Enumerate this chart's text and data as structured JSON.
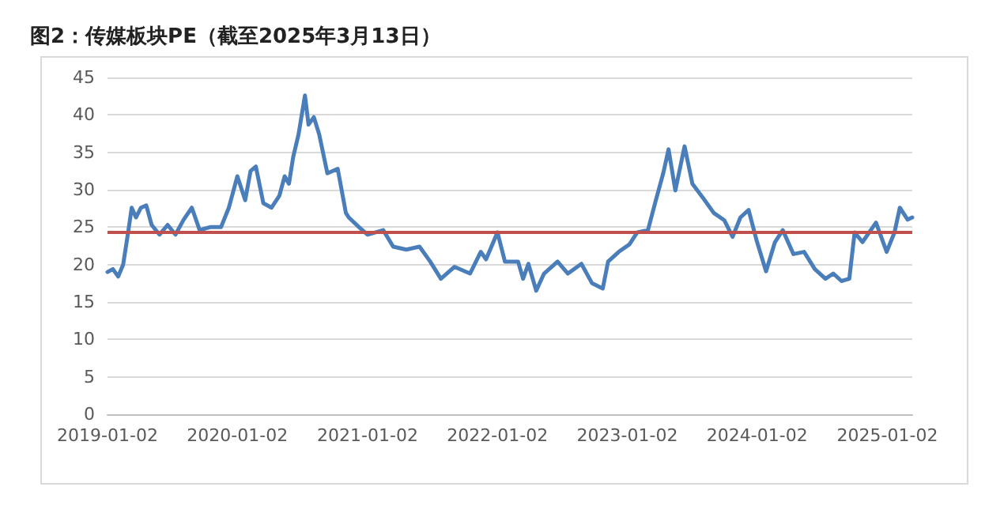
{
  "chart_data": {
    "type": "line",
    "title": "图2：传媒板块PE（截至2025年3月13日）",
    "x": [
      "2019-01-02",
      "2019-01-17",
      "2019-02-01",
      "2019-02-15",
      "2019-03-01",
      "2019-03-11",
      "2019-03-23",
      "2019-04-06",
      "2019-04-21",
      "2019-05-06",
      "2019-05-28",
      "2019-06-20",
      "2019-07-12",
      "2019-08-04",
      "2019-08-27",
      "2019-09-18",
      "2019-10-17",
      "2019-11-17",
      "2019-12-09",
      "2020-01-02",
      "2020-01-24",
      "2020-02-08",
      "2020-02-23",
      "2020-03-15",
      "2020-04-07",
      "2020-04-29",
      "2020-05-14",
      "2020-05-26",
      "2020-06-07",
      "2020-06-22",
      "2020-07-10",
      "2020-07-20",
      "2020-08-04",
      "2020-08-19",
      "2020-09-11",
      "2020-10-10",
      "2020-11-02",
      "2020-11-10",
      "2020-12-09",
      "2021-01-02",
      "2021-02-15",
      "2021-03-15",
      "2021-04-21",
      "2021-05-28",
      "2021-06-27",
      "2021-07-27",
      "2021-09-03",
      "2021-10-17",
      "2021-11-16",
      "2021-12-01",
      "2022-01-02",
      "2022-01-23",
      "2022-03-01",
      "2022-03-15",
      "2022-03-30",
      "2022-04-21",
      "2022-05-13",
      "2022-06-20",
      "2022-07-19",
      "2022-08-26",
      "2022-09-25",
      "2022-10-25",
      "2022-11-09",
      "2022-12-09",
      "2023-01-08",
      "2023-01-30",
      "2023-03-01",
      "2023-03-21",
      "2023-04-13",
      "2023-04-28",
      "2023-05-17",
      "2023-06-12",
      "2023-07-04",
      "2023-08-03",
      "2023-09-02",
      "2023-10-02",
      "2023-10-25",
      "2023-11-16",
      "2023-12-09",
      "2023-12-31",
      "2024-01-27",
      "2024-02-21",
      "2024-03-14",
      "2024-04-13",
      "2024-05-13",
      "2024-06-12",
      "2024-07-12",
      "2024-08-03",
      "2024-08-26",
      "2024-09-17",
      "2024-10-02",
      "2024-10-24",
      "2024-12-01",
      "2024-12-31",
      "2025-01-22",
      "2025-02-06",
      "2025-02-28",
      "2025-03-13"
    ],
    "series": [
      {
        "color": "#4a7ebb",
        "values": [
          19,
          19.4,
          18.4,
          20,
          24.3,
          27.6,
          26.3,
          27.6,
          27.9,
          25.3,
          24,
          25.3,
          24,
          26,
          27.6,
          24.6,
          25,
          25,
          27.6,
          31.8,
          28.6,
          32.5,
          33.1,
          28.2,
          27.6,
          29.2,
          31.8,
          30.8,
          34.4,
          37.4,
          42.6,
          38.7,
          39.7,
          37.4,
          32.2,
          32.8,
          26.9,
          26.3,
          25,
          24,
          24.6,
          22.4,
          22,
          22.4,
          20.4,
          18.1,
          19.7,
          18.8,
          21.7,
          20.7,
          24.3,
          20.4,
          20.4,
          18.1,
          20.1,
          16.5,
          18.8,
          20.4,
          18.8,
          20.1,
          17.5,
          16.8,
          20.4,
          21.7,
          22.7,
          24.3,
          24.6,
          28.2,
          32.2,
          35.4,
          29.9,
          35.8,
          30.8,
          28.9,
          26.9,
          25.9,
          23.7,
          26.3,
          27.3,
          23.3,
          19.1,
          23,
          24.6,
          21.4,
          21.7,
          19.4,
          18.1,
          18.8,
          17.8,
          18.1,
          24.3,
          23,
          25.6,
          21.7,
          24.3,
          27.6,
          26,
          26.3
        ]
      }
    ],
    "xlim": [
      "2019-01-02",
      "2025-03-13"
    ],
    "xticks": [
      "2019-01-02",
      "2020-01-02",
      "2021-01-02",
      "2022-01-02",
      "2023-01-02",
      "2024-01-02",
      "2025-01-02"
    ],
    "ylim": [
      0,
      45
    ],
    "yticks": [
      0,
      5,
      10,
      15,
      20,
      25,
      30,
      35,
      40,
      45
    ],
    "ref_lines": [
      {
        "axis": "y",
        "value": 24.4,
        "color": "#c0504d"
      }
    ],
    "grid": "y",
    "marker": "none",
    "line_style": "solid"
  }
}
